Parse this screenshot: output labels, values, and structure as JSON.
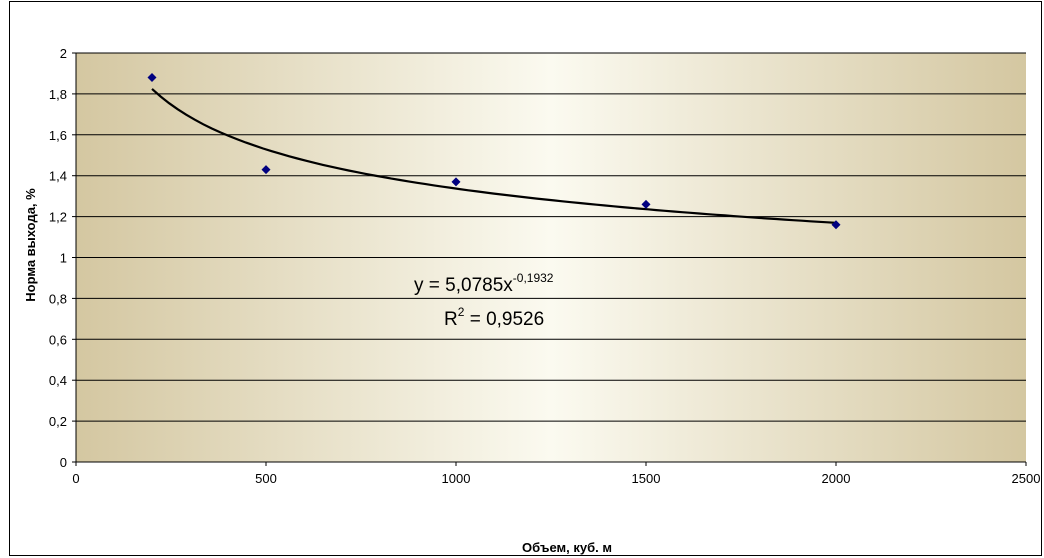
{
  "chart_data": {
    "type": "scatter",
    "title": "",
    "xlabel": "Объем, куб. м",
    "ylabel": "Норма выхода, %",
    "xlim": [
      0,
      2500
    ],
    "ylim": [
      0,
      2
    ],
    "x_ticks": [
      0,
      500,
      1000,
      1500,
      2000,
      2500
    ],
    "y_ticks": [
      0,
      0.2,
      0.4,
      0.6,
      0.8,
      1,
      1.2,
      1.4,
      1.6,
      1.8,
      2
    ],
    "x_tick_labels": [
      "0",
      "500",
      "1000",
      "1500",
      "2000",
      "2500"
    ],
    "y_tick_labels": [
      "0",
      "0,2",
      "0,4",
      "0,6",
      "0,8",
      "1",
      "1,2",
      "1,4",
      "1,6",
      "1,8",
      "2"
    ],
    "grid": "horizontal",
    "legend": "none",
    "series": [
      {
        "marker": "diamond",
        "color": "#000080",
        "points": [
          {
            "x": 200,
            "y": 1.88
          },
          {
            "x": 500,
            "y": 1.43
          },
          {
            "x": 1000,
            "y": 1.37
          },
          {
            "x": 1500,
            "y": 1.26
          },
          {
            "x": 2000,
            "y": 1.16
          }
        ]
      }
    ],
    "trendline": {
      "type": "power",
      "coefficient": 5.0785,
      "exponent": -0.1932,
      "x_range": [
        200,
        2000
      ],
      "color": "#000000",
      "equation_text": "y = 5,0785x",
      "equation_exponent": "-0,1932",
      "r2_prefix": "R",
      "r2_sup": "2",
      "r2_text": " = 0,9526"
    },
    "colors": {
      "plot_edge": "#d4c7a1",
      "plot_center": "#fbfaf0",
      "gridline": "#000000"
    }
  }
}
